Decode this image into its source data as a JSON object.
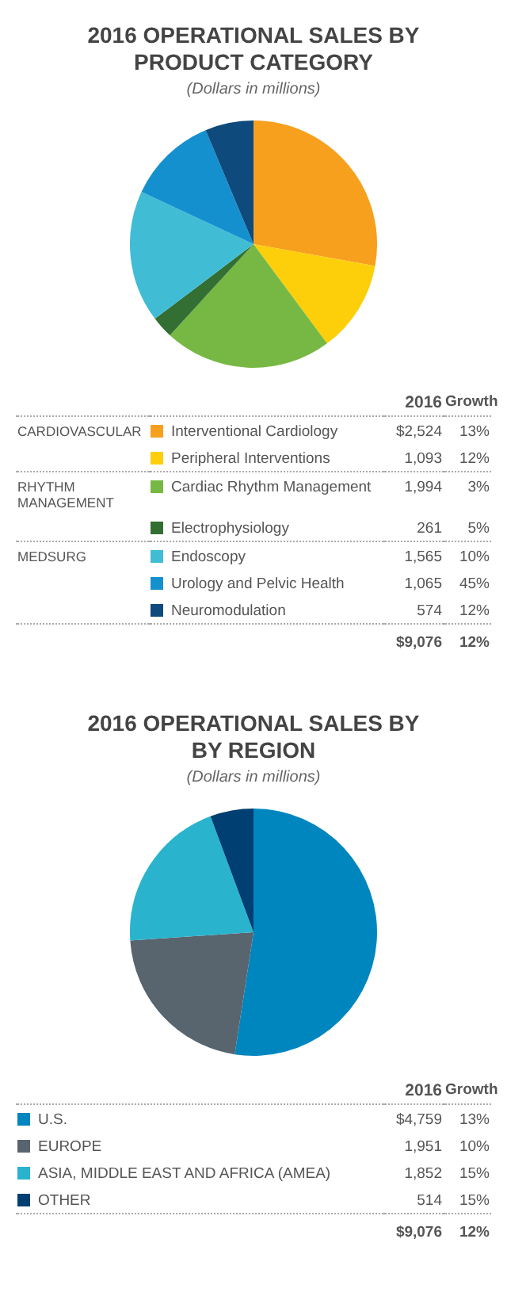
{
  "chart_data": [
    {
      "type": "pie",
      "title": "2016 OPERATIONAL SALES BY PRODUCT CATEGORY",
      "subtitle": "(Dollars in millions)",
      "categories": [
        "Interventional Cardiology",
        "Peripheral Interventions",
        "Cardiac Rhythm Management",
        "Electrophysiology",
        "Endoscopy",
        "Urology and Pelvic Health",
        "Neuromodulation"
      ],
      "values": [
        2524,
        1093,
        1994,
        261,
        1565,
        1065,
        574
      ],
      "colors": [
        "#f7a01e",
        "#fdcf0a",
        "#76b843",
        "#336f33",
        "#40bdd5",
        "#1590cf",
        "#0e4a7c"
      ],
      "value_labels": [
        "$2,524",
        "1,093",
        "1,994",
        "261",
        "1,565",
        "1,065",
        "574"
      ],
      "totals": [
        "$9,076"
      ],
      "legend": "bottom",
      "annotations": [
        "2016",
        "Growth",
        "12%",
        {
          "text": "CARDIOVASCULAR",
          "x": "Interventional Cardiology"
        },
        {
          "text": "RHYTHM MANAGEMENT",
          "x": "Cardiac Rhythm Management"
        },
        {
          "text": "MEDSURG",
          "x": "Endoscopy"
        },
        {
          "text": "13%",
          "x": "Interventional Cardiology"
        },
        {
          "text": "12%",
          "x": "Peripheral Interventions"
        },
        {
          "text": "3%",
          "x": "Cardiac Rhythm Management"
        },
        {
          "text": "5%",
          "x": "Electrophysiology"
        },
        {
          "text": "10%",
          "x": "Endoscopy"
        },
        {
          "text": "45%",
          "x": "Urology and Pelvic Health"
        },
        {
          "text": "12%",
          "x": "Neuromodulation"
        }
      ]
    },
    {
      "type": "pie",
      "title": "2016 OPERATIONAL SALES BY BY REGION",
      "subtitle": "(Dollars in millions)",
      "categories": [
        "U.S.",
        "EUROPE",
        "ASIA, MIDDLE EAST AND AFRICA (AMEA)",
        "OTHER"
      ],
      "values": [
        4759,
        1951,
        1852,
        514
      ],
      "colors": [
        "#0086bf",
        "#58646e",
        "#29b3cd",
        "#003f72"
      ],
      "value_labels": [
        "$4,759",
        "1,951",
        "1,852",
        "514"
      ],
      "totals": [
        "$9,076"
      ],
      "legend": "bottom",
      "annotations": [
        "2016",
        "Growth",
        "12%",
        {
          "text": "13%",
          "x": "U.S."
        },
        {
          "text": "10%",
          "x": "EUROPE"
        },
        {
          "text": "15%",
          "x": "ASIA, MIDDLE EAST AND AFRICA (AMEA)"
        },
        {
          "text": "15%",
          "x": "OTHER"
        }
      ]
    }
  ]
}
